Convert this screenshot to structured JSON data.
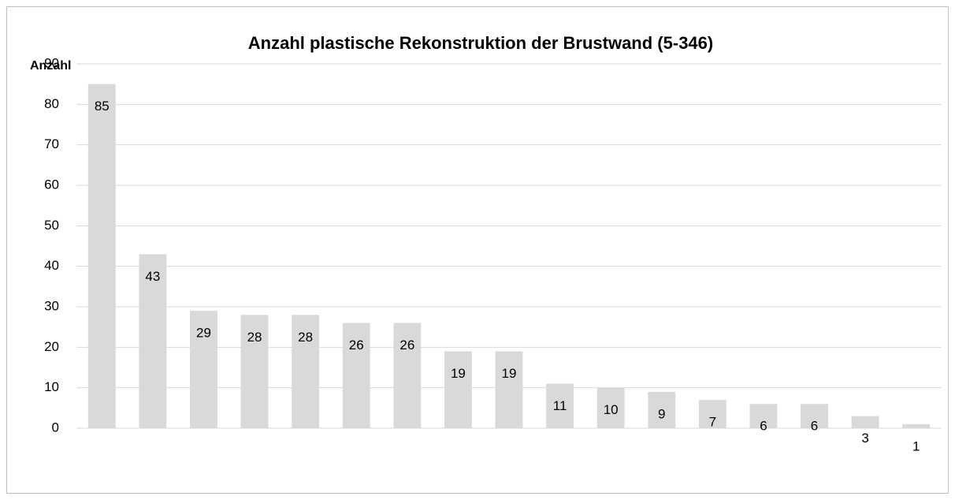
{
  "chart_data": {
    "type": "bar",
    "title": "Anzahl plastische Rekonstruktion der Brustwand (5-346)",
    "y_label": "Anzahl",
    "categories": [
      null,
      null,
      null,
      null,
      null,
      null,
      null,
      null,
      null,
      null,
      null,
      null,
      null,
      null,
      null,
      null,
      null
    ],
    "values": [
      85,
      43,
      29,
      28,
      28,
      26,
      26,
      19,
      19,
      11,
      10,
      9,
      7,
      6,
      6,
      3,
      1
    ],
    "color": "#d9d9d9",
    "ylim": [
      0,
      90
    ],
    "yticks": [
      0,
      10,
      20,
      30,
      40,
      50,
      60,
      70,
      80,
      90
    ],
    "grid": true
  }
}
